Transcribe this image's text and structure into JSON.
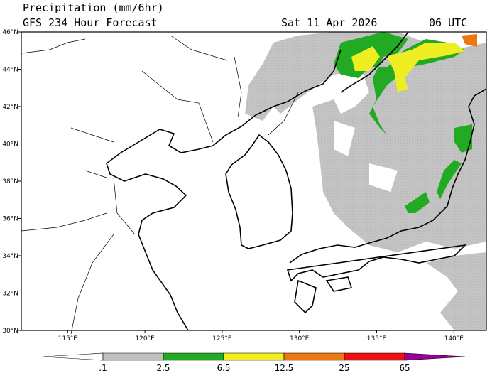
{
  "title": "Precipitation (mm/6hr)",
  "subtitle": "GFS 234 Hour Forecast",
  "date": "Sat 11 Apr 2026",
  "time": "06 UTC",
  "map": {
    "lonlim": [
      112,
      142.1
    ],
    "latlim": [
      30,
      46
    ],
    "lat_ticks": [
      {
        "value": 30,
        "label": "30°N"
      },
      {
        "value": 32,
        "label": "32°N"
      },
      {
        "value": 34,
        "label": "34°N"
      },
      {
        "value": 36,
        "label": "36°N"
      },
      {
        "value": 38,
        "label": "38°N"
      },
      {
        "value": 40,
        "label": "40°N"
      },
      {
        "value": 42,
        "label": "42°N"
      },
      {
        "value": 44,
        "label": "44°N"
      },
      {
        "value": 46,
        "label": "46°N"
      }
    ],
    "lon_ticks": [
      {
        "value": 115,
        "label": "115°E"
      },
      {
        "value": 120,
        "label": "120°E"
      },
      {
        "value": 125,
        "label": "125°E"
      },
      {
        "value": 130,
        "label": "130°E"
      },
      {
        "value": 135,
        "label": "135°E"
      },
      {
        "value": 140,
        "label": "140°E"
      }
    ]
  },
  "colorbar": {
    "levels": [
      {
        "value": 0.1,
        "label": ".1"
      },
      2.5,
      6.5,
      12.5,
      25,
      65
    ],
    "colors": [
      "#ffffff",
      "#c0c0c0",
      "#22aa22",
      "#eeee22",
      "#ee7711",
      "#ee1111",
      "#990099"
    ]
  }
}
